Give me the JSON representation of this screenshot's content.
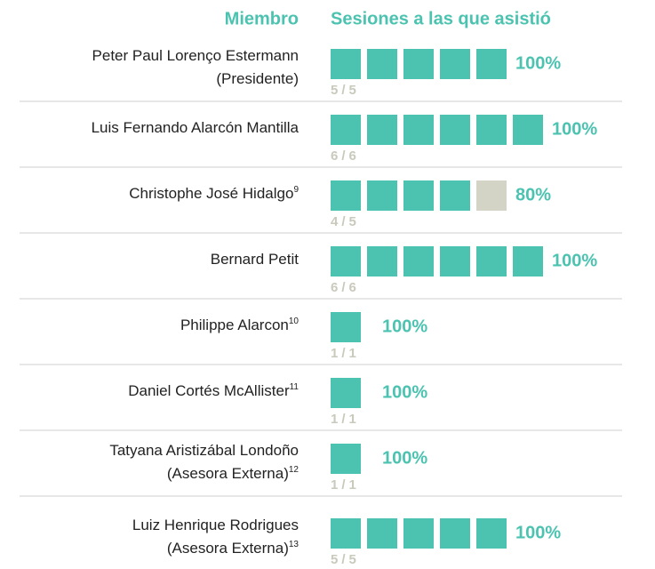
{
  "header": {
    "member": "Miembro",
    "sessions": "Sesiones a las que asistió"
  },
  "separator": "/",
  "rows": [
    {
      "name": [
        "Peter Paul Lorenço Estermann",
        "(Presidente)"
      ],
      "note": null,
      "attended": 5,
      "total": 5,
      "percent": "100%"
    },
    {
      "name": [
        "Luis Fernando Alarcón Mantilla"
      ],
      "note": null,
      "attended": 6,
      "total": 6,
      "percent": "100%"
    },
    {
      "name": [
        "Christophe José Hidalgo"
      ],
      "note": "9",
      "attended": 4,
      "total": 5,
      "percent": "80%"
    },
    {
      "name": [
        "Bernard Petit"
      ],
      "note": null,
      "attended": 6,
      "total": 6,
      "percent": "100%"
    },
    {
      "name": [
        "Philippe Alarcon"
      ],
      "note": "10",
      "attended": 1,
      "total": 1,
      "percent": "100%"
    },
    {
      "name": [
        "Daniel Cortés McAllister"
      ],
      "note": "11",
      "attended": 1,
      "total": 1,
      "percent": "100%"
    },
    {
      "name": [
        "Tatyana Aristizábal Londoño",
        "(Asesora Externa)"
      ],
      "note": "12",
      "attended": 1,
      "total": 1,
      "percent": "100%"
    },
    {
      "name": [
        "Luiz Henrique Rodrigues",
        "(Asesora Externa)"
      ],
      "note": "13",
      "attended": 5,
      "total": 5,
      "percent": "100%"
    }
  ]
}
